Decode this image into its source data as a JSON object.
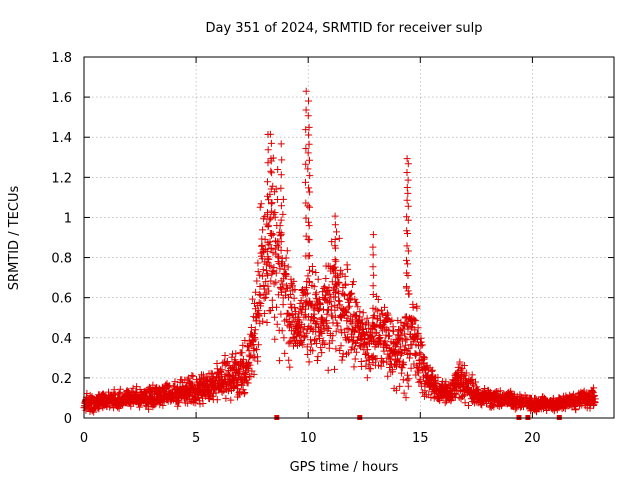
{
  "chart_data": {
    "type": "scatter",
    "title": "Day 351 of 2024, SRMTID for receiver sulp",
    "xlabel": "GPS time / hours",
    "ylabel": "SRMTID / TECUs",
    "xlim": [
      0,
      23.64
    ],
    "ylim": [
      0,
      1.8
    ],
    "xticks": [
      0,
      5,
      10,
      15,
      20
    ],
    "xtick_labels": [
      "0",
      "5",
      "10",
      "15",
      "20"
    ],
    "yticks": [
      0,
      0.2,
      0.4,
      0.6,
      0.8,
      1.0,
      1.2,
      1.4,
      1.6,
      1.8
    ],
    "ytick_labels": [
      "0",
      "0.2",
      "0.4",
      "0.6",
      "0.8",
      "1",
      "1.2",
      "1.4",
      "1.6",
      "1.8"
    ],
    "grid": true,
    "marker": "plus",
    "color": "#e00000",
    "x_range_of_data": [
      0,
      22.8
    ],
    "gap_markers_x": [
      8.6,
      12.3,
      19.4,
      19.8,
      21.2
    ],
    "series": [
      {
        "name": "SRMTID",
        "x": [
          0.0,
          0.5,
          1.0,
          1.5,
          2.0,
          2.5,
          3.0,
          3.5,
          4.0,
          4.5,
          5.0,
          5.5,
          6.0,
          6.5,
          7.0,
          7.3,
          7.6,
          7.9,
          8.2,
          8.4,
          8.6,
          8.8,
          9.0,
          9.2,
          9.5,
          9.8,
          10.0,
          10.3,
          10.6,
          11.0,
          11.3,
          11.6,
          12.0,
          12.3,
          12.6,
          12.9,
          13.2,
          13.5,
          13.8,
          14.1,
          14.4,
          14.7,
          15.0,
          15.3,
          15.6,
          16.0,
          16.4,
          16.8,
          17.2,
          17.6,
          18.0,
          18.5,
          19.0,
          19.5,
          20.0,
          20.5,
          21.0,
          21.5,
          22.0,
          22.5,
          22.8
        ],
        "center": [
          0.07,
          0.08,
          0.09,
          0.09,
          0.1,
          0.1,
          0.11,
          0.11,
          0.12,
          0.13,
          0.14,
          0.16,
          0.18,
          0.2,
          0.22,
          0.26,
          0.4,
          0.7,
          0.85,
          0.9,
          0.8,
          0.72,
          0.6,
          0.5,
          0.45,
          0.48,
          0.55,
          0.5,
          0.52,
          0.6,
          0.62,
          0.55,
          0.45,
          0.4,
          0.36,
          0.38,
          0.45,
          0.4,
          0.32,
          0.34,
          0.4,
          0.42,
          0.28,
          0.2,
          0.15,
          0.13,
          0.12,
          0.2,
          0.14,
          0.11,
          0.1,
          0.09,
          0.09,
          0.08,
          0.07,
          0.07,
          0.07,
          0.08,
          0.09,
          0.1,
          0.1
        ],
        "spread": [
          0.03,
          0.04,
          0.04,
          0.04,
          0.04,
          0.04,
          0.05,
          0.05,
          0.05,
          0.06,
          0.06,
          0.07,
          0.08,
          0.09,
          0.1,
          0.12,
          0.18,
          0.3,
          0.4,
          0.45,
          0.42,
          0.35,
          0.3,
          0.2,
          0.15,
          0.18,
          0.25,
          0.22,
          0.22,
          0.28,
          0.28,
          0.22,
          0.18,
          0.16,
          0.14,
          0.14,
          0.2,
          0.18,
          0.14,
          0.14,
          0.2,
          0.2,
          0.14,
          0.08,
          0.06,
          0.05,
          0.05,
          0.1,
          0.06,
          0.04,
          0.04,
          0.04,
          0.04,
          0.03,
          0.03,
          0.03,
          0.03,
          0.03,
          0.04,
          0.04,
          0.04
        ],
        "points_count": 2600
      }
    ],
    "peaks": [
      {
        "x": 8.2,
        "y": 1.43
      },
      {
        "x": 8.35,
        "y": 1.38
      },
      {
        "x": 8.8,
        "y": 1.38
      },
      {
        "x": 9.9,
        "y": 1.63
      },
      {
        "x": 10.0,
        "y": 1.6
      },
      {
        "x": 10.05,
        "y": 1.46
      },
      {
        "x": 11.2,
        "y": 1.02
      },
      {
        "x": 12.9,
        "y": 0.92
      },
      {
        "x": 14.4,
        "y": 1.3
      },
      {
        "x": 14.45,
        "y": 1.27
      }
    ]
  }
}
